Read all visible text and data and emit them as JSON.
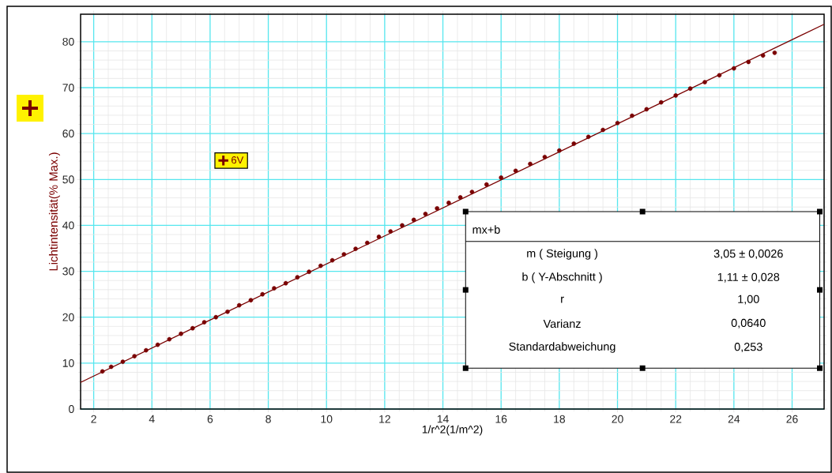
{
  "chart_data": {
    "type": "scatter",
    "xlabel": "1/r^2(1/m^2)",
    "ylabel": "Lichtintensität(% Max.)",
    "xlim": [
      1.55,
      27.1
    ],
    "ylim": [
      0,
      86
    ],
    "xticks": [
      2,
      4,
      6,
      8,
      10,
      12,
      14,
      16,
      18,
      20,
      22,
      24,
      26
    ],
    "yticks": [
      0,
      10,
      20,
      30,
      40,
      50,
      60,
      70,
      80
    ],
    "grid": true,
    "legend": "top left",
    "marker": "circle",
    "series": [
      {
        "name": "6V",
        "color": "#7a0000",
        "x": [
          2.3,
          2.6,
          3.0,
          3.4,
          3.8,
          4.2,
          4.6,
          5.0,
          5.4,
          5.8,
          6.2,
          6.6,
          7.0,
          7.4,
          7.8,
          8.2,
          8.6,
          9.0,
          9.4,
          9.8,
          10.2,
          10.6,
          11.0,
          11.4,
          11.8,
          12.2,
          12.6,
          13.0,
          13.4,
          13.8,
          14.2,
          14.6,
          15.0,
          15.5,
          16.0,
          16.5,
          17.0,
          17.5,
          18.0,
          18.5,
          19.0,
          19.5,
          20.0,
          20.5,
          21.0,
          21.5,
          22.0,
          22.5,
          23.0,
          23.5,
          24.0,
          24.5,
          25.0,
          25.4
        ],
        "values": [
          8.2,
          9.2,
          10.3,
          11.5,
          12.8,
          14.0,
          15.2,
          16.4,
          17.6,
          18.9,
          20.0,
          21.2,
          22.6,
          23.7,
          25.0,
          26.3,
          27.4,
          28.7,
          29.9,
          31.2,
          32.4,
          33.7,
          34.9,
          36.2,
          37.5,
          38.7,
          40.0,
          41.2,
          42.5,
          43.7,
          44.9,
          46.1,
          47.3,
          48.9,
          50.4,
          51.9,
          53.4,
          54.9,
          56.3,
          57.8,
          59.3,
          60.8,
          62.3,
          63.9,
          65.3,
          66.8,
          68.3,
          69.8,
          71.2,
          72.7,
          74.2,
          75.6,
          77.0,
          77.6
        ]
      },
      {
        "type": "line",
        "color": "#7a0000",
        "marker": "none",
        "x": [
          1.55,
          27.1
        ],
        "values": [
          5.8,
          83.8
        ]
      }
    ],
    "annotations": [
      "mx+b",
      "m ( Steigung )",
      "3,05 ± 0,0026",
      "b ( Y-Abschnitt )",
      "1,11 ±   0,028",
      "r",
      "1,00",
      "Varianz",
      "0,0640",
      "Standardabweichung",
      "0,253"
    ]
  }
}
